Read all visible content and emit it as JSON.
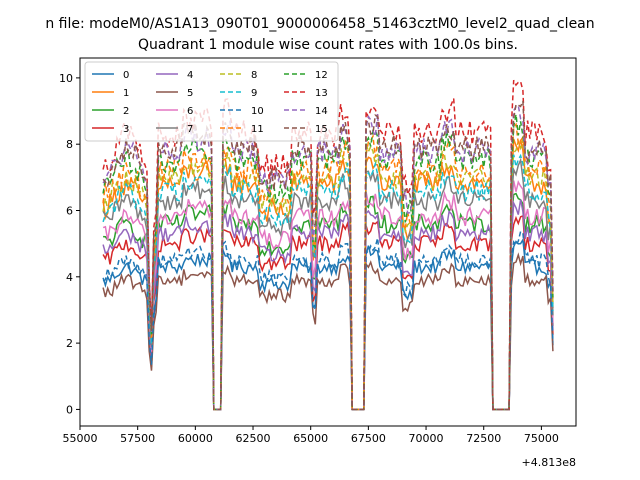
{
  "suptitle": "n file: modeM0/AS1A13_090T01_9000006458_51463cztM0_level2_quad_clean",
  "chart_data": {
    "type": "line",
    "title": "Quadrant 1 module wise count rates with 100.0s bins.",
    "xlabel": "",
    "ylabel": "",
    "x_offset_label": "+4.813e8",
    "xlim": [
      55000,
      76500
    ],
    "ylim": [
      -0.5,
      10.6
    ],
    "grid": false,
    "legend_position": "top-left",
    "x_ticks": [
      55000,
      57500,
      60000,
      62500,
      65000,
      67500,
      70000,
      72500,
      75000
    ],
    "y_ticks": [
      0,
      2,
      4,
      6,
      8,
      10
    ],
    "segments": [
      [
        56000,
        60700
      ],
      [
        61200,
        66700
      ],
      [
        67400,
        72800
      ],
      [
        73700,
        75500
      ]
    ],
    "gaps": [
      [
        60700,
        61200
      ],
      [
        66700,
        67400
      ],
      [
        72800,
        73700
      ]
    ],
    "series": [
      {
        "name": "0",
        "color": "#1f77b4",
        "style": "solid",
        "level": 4.3
      },
      {
        "name": "1",
        "color": "#ff7f0e",
        "style": "solid",
        "level": 6.8
      },
      {
        "name": "2",
        "color": "#2ca02c",
        "style": "solid",
        "level": 5.6
      },
      {
        "name": "3",
        "color": "#d62728",
        "style": "solid",
        "level": 5.0
      },
      {
        "name": "4",
        "color": "#9467bd",
        "style": "solid",
        "level": 5.3
      },
      {
        "name": "5",
        "color": "#8c564b",
        "style": "solid",
        "level": 3.9
      },
      {
        "name": "6",
        "color": "#e377c2",
        "style": "solid",
        "level": 5.8
      },
      {
        "name": "7",
        "color": "#7f7f7f",
        "style": "solid",
        "level": 6.3
      },
      {
        "name": "8",
        "color": "#bcbd22",
        "style": "dashed",
        "level": 7.0
      },
      {
        "name": "9",
        "color": "#17becf",
        "style": "dashed",
        "level": 6.6
      },
      {
        "name": "10",
        "color": "#1f77b4",
        "style": "dashed",
        "level": 4.5
      },
      {
        "name": "11",
        "color": "#ff7f0e",
        "style": "dashed",
        "level": 7.2
      },
      {
        "name": "12",
        "color": "#2ca02c",
        "style": "dashed",
        "level": 7.5
      },
      {
        "name": "13",
        "color": "#d62728",
        "style": "dashed",
        "level": 8.3
      },
      {
        "name": "14",
        "color": "#9467bd",
        "style": "dashed",
        "level": 7.8
      },
      {
        "name": "15",
        "color": "#8c564b",
        "style": "dashed",
        "level": 7.9
      }
    ]
  }
}
